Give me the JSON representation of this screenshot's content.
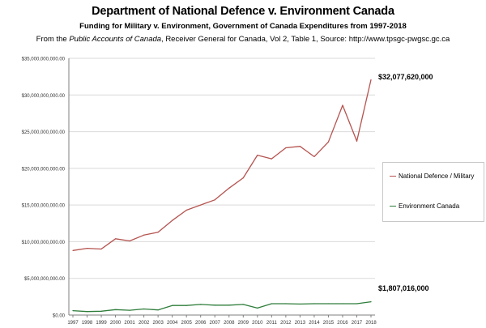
{
  "header": {
    "title": "Department of National Defence v. Environment Canada",
    "subtitle": "Funding for Military v. Environment, Government of Canada Expenditures from 1997-2018",
    "source_prefix": "From the ",
    "source_italic": "Public Accounts of Canada",
    "source_suffix": ", Receiver General for Canada, Vol 2, Table 1, Source: http://www.tpsgc-pwgsc.gc.ca"
  },
  "colors": {
    "defence": "#b5534f",
    "environment": "#2e7d3a",
    "grid": "#d9d9d9",
    "axis": "#7f7f7f"
  },
  "chart_data": {
    "type": "line",
    "title": "Department of National Defence v. Environment Canada",
    "subtitle": "Funding for Military v. Environment, Government of Canada Expenditures from 1997-2018",
    "xlabel": "",
    "ylabel": "",
    "grid": true,
    "legend_position": "right",
    "x": [
      "1997",
      "1998",
      "1999",
      "2000",
      "2001",
      "2002",
      "2003",
      "2004",
      "2005",
      "2006",
      "2007",
      "2008",
      "2009",
      "2010",
      "2011",
      "2012",
      "2013",
      "2014",
      "2015",
      "2016",
      "2017",
      "2018"
    ],
    "ylim": [
      0,
      35000000000
    ],
    "yticks": [
      {
        "value": 0,
        "label": "$0.00"
      },
      {
        "value": 5000000000,
        "label": "$5,000,000,000.00"
      },
      {
        "value": 10000000000,
        "label": "$10,000,000,000.00"
      },
      {
        "value": 15000000000,
        "label": "$15,000,000,000.00"
      },
      {
        "value": 20000000000,
        "label": "$20,000,000,000.00"
      },
      {
        "value": 25000000000,
        "label": "$25,000,000,000.00"
      },
      {
        "value": 30000000000,
        "label": "$30,000,000,000.00"
      },
      {
        "value": 35000000000,
        "label": "$35,000,000,000.00"
      }
    ],
    "series": [
      {
        "name": "National Defence / Military",
        "color": "#b5534f",
        "values": [
          8800000000,
          9100000000,
          9000000000,
          10400000000,
          10100000000,
          10900000000,
          11300000000,
          12900000000,
          14300000000,
          15000000000,
          15700000000,
          17300000000,
          18700000000,
          21800000000,
          21300000000,
          22800000000,
          23000000000,
          21600000000,
          23600000000,
          28600000000,
          23700000000,
          32077620000
        ]
      },
      {
        "name": "Environment Canada",
        "color": "#2e7d3a",
        "values": [
          600000000,
          480000000,
          520000000,
          740000000,
          650000000,
          830000000,
          700000000,
          1300000000,
          1300000000,
          1450000000,
          1350000000,
          1350000000,
          1450000000,
          950000000,
          1550000000,
          1550000000,
          1500000000,
          1550000000,
          1550000000,
          1550000000,
          1550000000,
          1807016000
        ]
      }
    ],
    "annotations": [
      {
        "series": 0,
        "label": "$32,077,620,000"
      },
      {
        "series": 1,
        "label": "$1,807,016,000"
      }
    ]
  }
}
